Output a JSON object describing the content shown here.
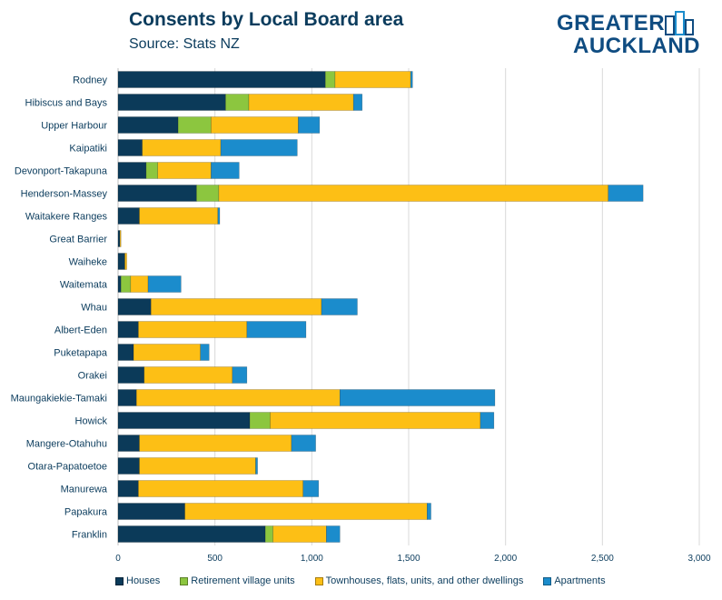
{
  "header": {
    "title": "Consents by Local Board area",
    "subtitle": "Source: Stats NZ"
  },
  "logo": {
    "line1": "GREATER",
    "line2": "AUCKLAND"
  },
  "colors": {
    "Houses": "#0b3a59",
    "Retirement village units": "#8cc63f",
    "Townhouses, flats, units, and other dwellings": "#fdbf15",
    "Apartments": "#1b8ccc",
    "grid": "#d9d9d9",
    "text": "#0b3c5d"
  },
  "chart_data": {
    "type": "bar",
    "orientation": "horizontal",
    "stacked": true,
    "title": "Consents by Local Board area",
    "subtitle": "Source: Stats NZ",
    "categories": [
      "Rodney",
      "Hibiscus and Bays",
      "Upper Harbour",
      "Kaipatiki",
      "Devonport-Takapuna",
      "Henderson-Massey",
      "Waitakere Ranges",
      "Great Barrier",
      "Waiheke",
      "Waitemata",
      "Whau",
      "Albert-Eden",
      "Puketapapa",
      "Orakei",
      "Maungakiekie-Tamaki",
      "Howick",
      "Mangere-Otahuhu",
      "Otara-Papatoetoe",
      "Manurewa",
      "Papakura",
      "Franklin"
    ],
    "series": [
      {
        "name": "Houses",
        "values": [
          1070,
          555,
          310,
          125,
          145,
          405,
          110,
          10,
          35,
          15,
          170,
          105,
          80,
          135,
          95,
          680,
          110,
          110,
          105,
          345,
          760
        ]
      },
      {
        "name": "Retirement village units",
        "values": [
          50,
          120,
          170,
          0,
          60,
          115,
          0,
          0,
          0,
          50,
          0,
          0,
          0,
          0,
          0,
          105,
          0,
          0,
          0,
          0,
          40
        ]
      },
      {
        "name": "Townhouses, flats, units, and other dwellings",
        "values": [
          390,
          540,
          450,
          405,
          275,
          2010,
          405,
          5,
          10,
          90,
          880,
          560,
          345,
          455,
          1050,
          1085,
          785,
          600,
          850,
          1250,
          275
        ]
      },
      {
        "name": "Apartments",
        "values": [
          10,
          45,
          110,
          395,
          145,
          180,
          10,
          0,
          0,
          170,
          185,
          305,
          45,
          75,
          800,
          70,
          125,
          10,
          80,
          20,
          70
        ]
      }
    ],
    "xlim": [
      0,
      3000
    ],
    "xticks": [
      "0",
      "500",
      "1,000",
      "1,500",
      "2,000",
      "2,500",
      "3,000"
    ],
    "xtick_values": [
      0,
      500,
      1000,
      1500,
      2000,
      2500,
      3000
    ],
    "grid": true,
    "legend_position": "bottom"
  }
}
